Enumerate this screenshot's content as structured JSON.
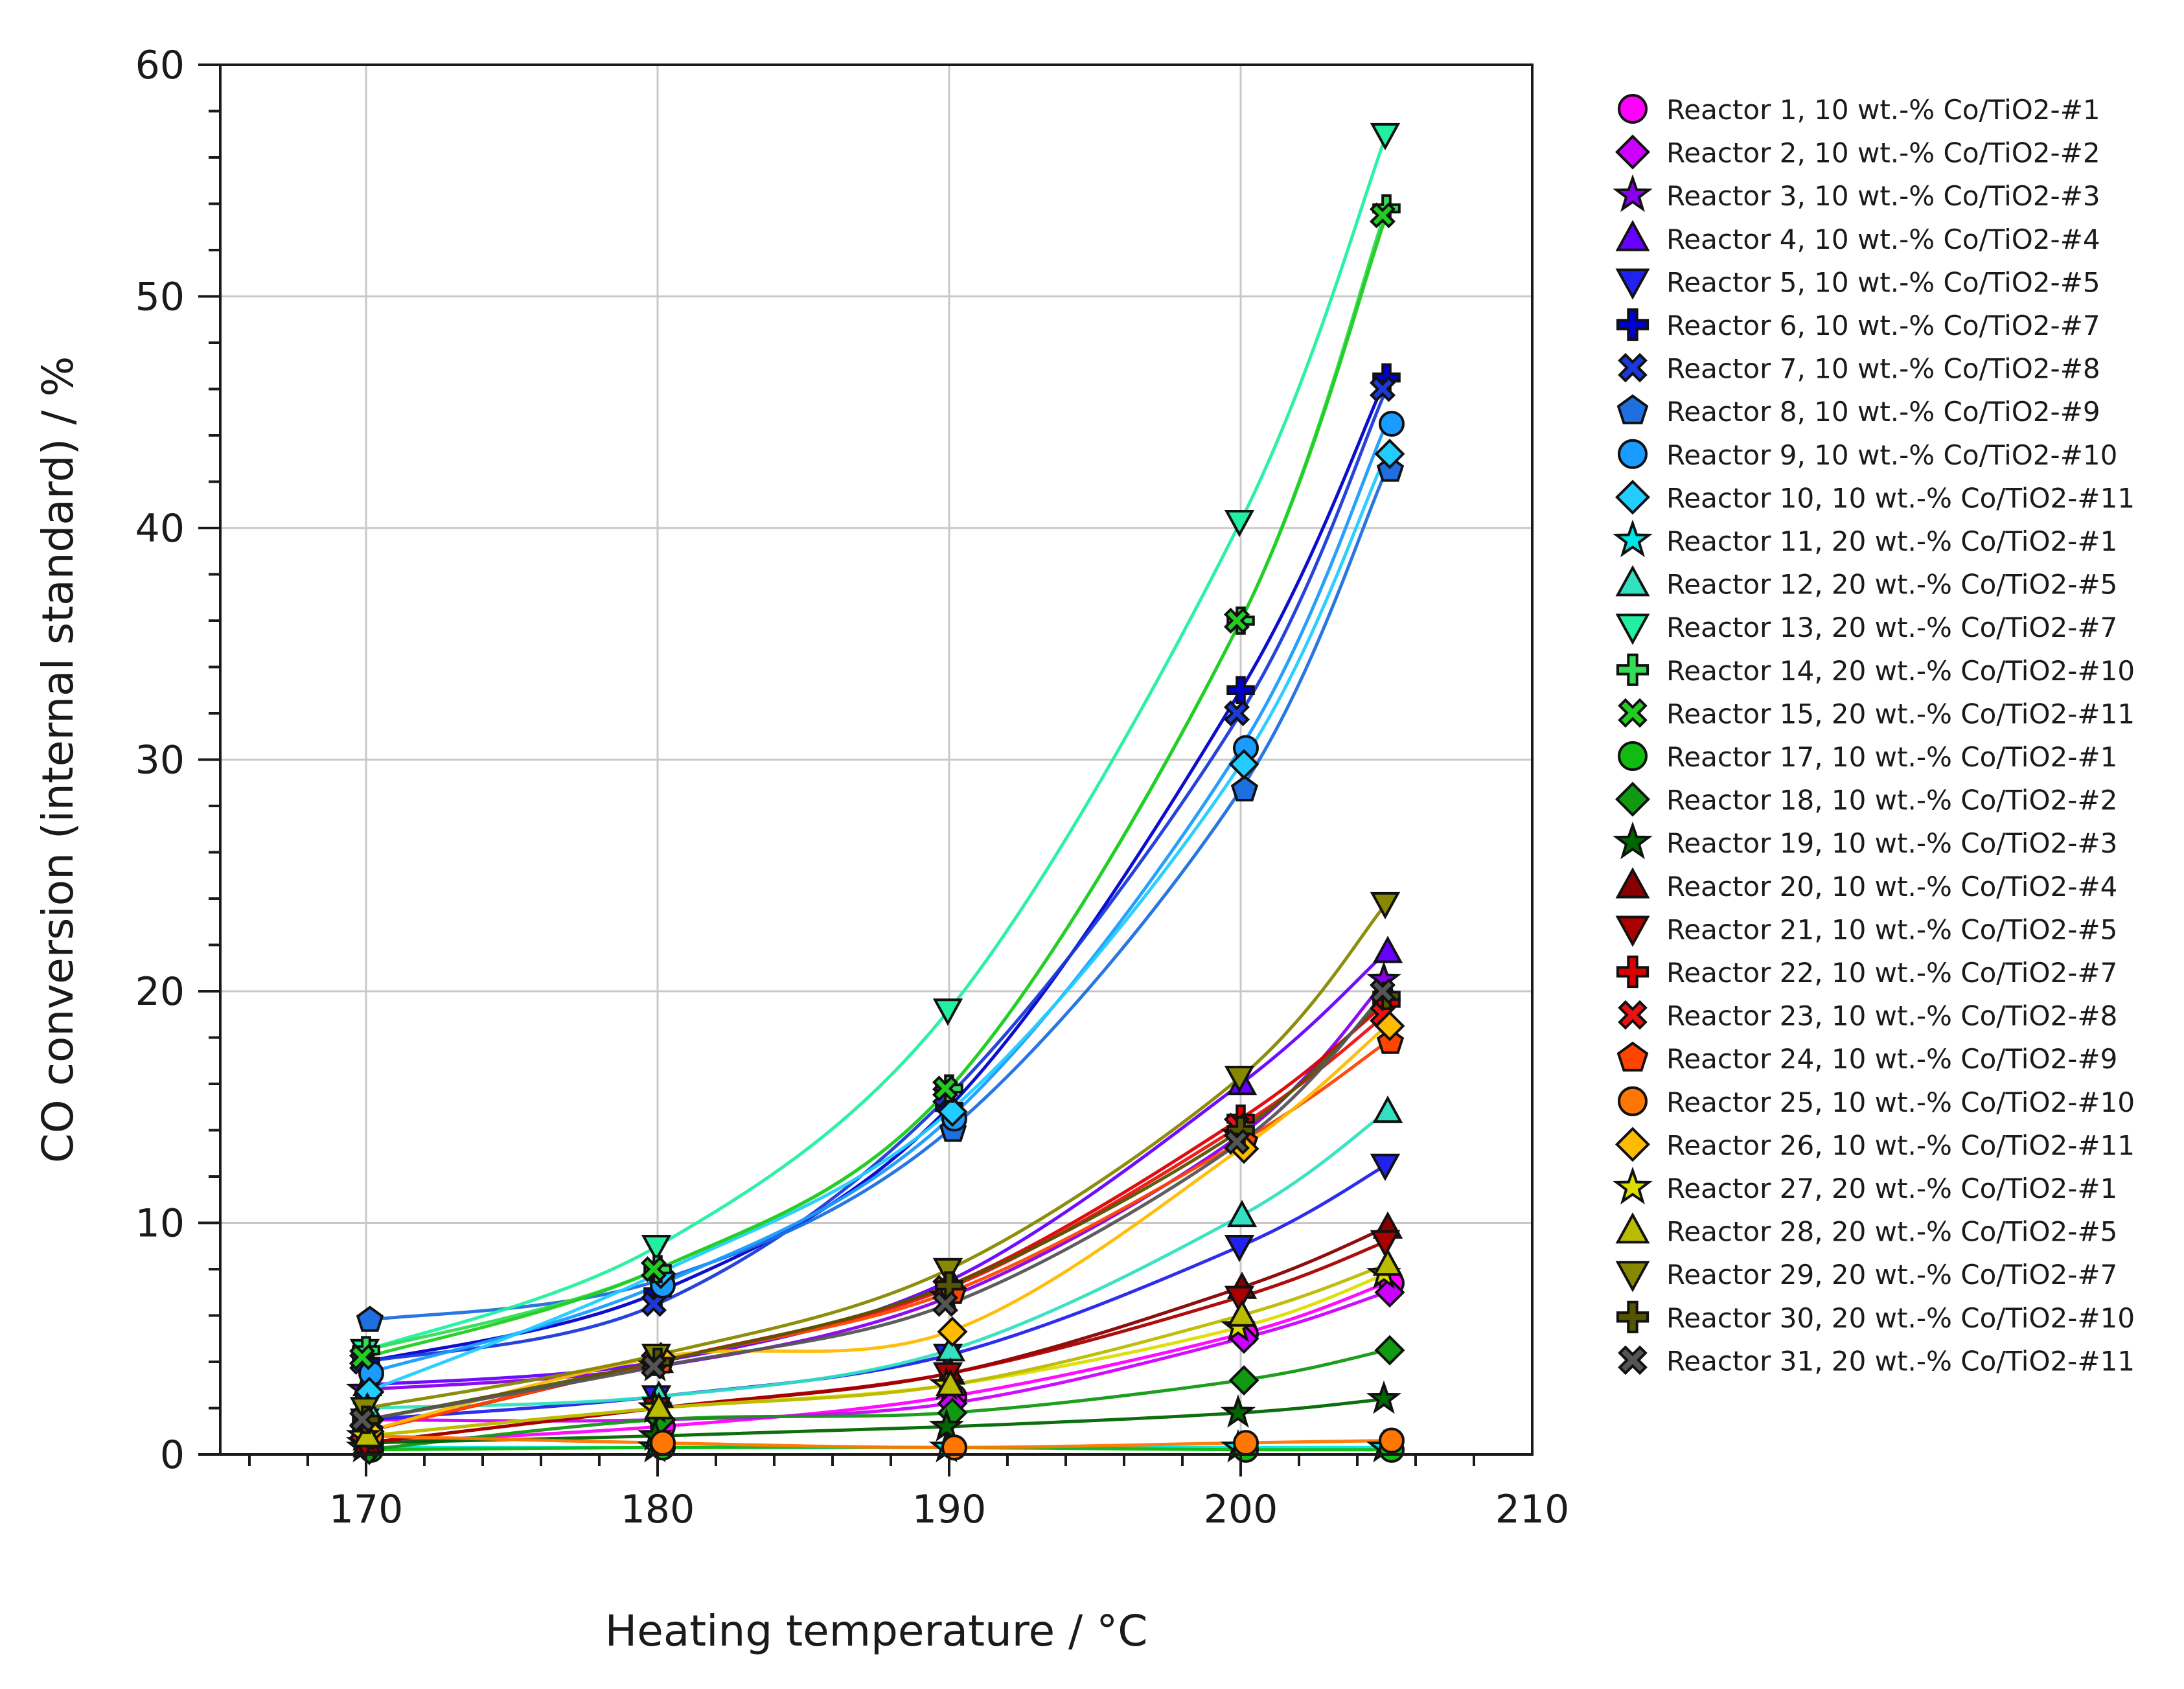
{
  "chart_data": {
    "type": "scatter",
    "title": "",
    "xlabel": "Heating temperature / °C",
    "ylabel": "CO conversion (internal standard) / %",
    "xlim": [
      165,
      210
    ],
    "ylim": [
      0,
      60
    ],
    "xticks": [
      170,
      180,
      190,
      200,
      210
    ],
    "yticks": [
      0,
      10,
      20,
      30,
      40,
      50,
      60
    ],
    "grid": true,
    "legend_position": "right",
    "x": [
      170,
      180,
      190,
      200,
      205
    ],
    "series": [
      {
        "name": "Reactor 1, 10 wt.-% Co/TiO2-#1",
        "marker": "circle",
        "color": "#ff00ff",
        "values": [
          0.5,
          1.2,
          2.5,
          5.2,
          7.4
        ]
      },
      {
        "name": "Reactor 2, 10 wt.-% Co/TiO2-#2",
        "marker": "diamond",
        "color": "#cc00ff",
        "values": [
          1.5,
          1.5,
          2.2,
          5.0,
          7.0
        ]
      },
      {
        "name": "Reactor 3, 10 wt.-% Co/TiO2-#3",
        "marker": "star",
        "color": "#8800ee",
        "values": [
          2.8,
          3.8,
          6.8,
          13.8,
          20.5
        ]
      },
      {
        "name": "Reactor 4, 10 wt.-% Co/TiO2-#4",
        "marker": "triangle-up",
        "color": "#6600ff",
        "values": [
          3.0,
          4.0,
          7.5,
          16.0,
          21.7
        ]
      },
      {
        "name": "Reactor 5, 10 wt.-% Co/TiO2-#5",
        "marker": "triangle-down",
        "color": "#2222ee",
        "values": [
          1.5,
          2.5,
          4.3,
          9.0,
          12.5
        ]
      },
      {
        "name": "Reactor 6, 10 wt.-% Co/TiO2-#7",
        "marker": "plus",
        "color": "#0000cc",
        "values": [
          4.0,
          7.0,
          15.0,
          33.0,
          46.5
        ]
      },
      {
        "name": "Reactor 7, 10 wt.-% Co/TiO2-#8",
        "marker": "x",
        "color": "#1a3ad9",
        "values": [
          4.0,
          6.5,
          15.5,
          32.0,
          46.0
        ]
      },
      {
        "name": "Reactor 8, 10 wt.-% Co/TiO2-#9",
        "marker": "pentagon",
        "color": "#1e6fe0",
        "values": [
          5.8,
          7.5,
          14.0,
          28.7,
          42.5
        ]
      },
      {
        "name": "Reactor 9, 10 wt.-% Co/TiO2-#10",
        "marker": "circle",
        "color": "#1a9bff",
        "values": [
          3.5,
          7.3,
          14.5,
          30.5,
          44.5
        ]
      },
      {
        "name": "Reactor 10, 10 wt.-% Co/TiO2-#11",
        "marker": "diamond",
        "color": "#22ccff",
        "values": [
          2.7,
          7.8,
          14.8,
          29.8,
          43.2
        ]
      },
      {
        "name": "Reactor 11, 20 wt.-% Co/TiO2-#1",
        "marker": "star",
        "color": "#00e5e5",
        "values": [
          0.3,
          0.3,
          0.3,
          0.3,
          0.3
        ]
      },
      {
        "name": "Reactor 12, 20 wt.-% Co/TiO2-#5",
        "marker": "triangle-up",
        "color": "#33e0c0",
        "values": [
          2.0,
          2.5,
          4.5,
          10.3,
          14.8
        ]
      },
      {
        "name": "Reactor 13, 20 wt.-% Co/TiO2-#7",
        "marker": "triangle-down",
        "color": "#22f0a0",
        "values": [
          4.5,
          9.0,
          19.2,
          40.3,
          57.0
        ]
      },
      {
        "name": "Reactor 14, 20 wt.-% Co/TiO2-#10",
        "marker": "plus",
        "color": "#33dd55",
        "values": [
          4.5,
          8.0,
          15.8,
          36.0,
          53.8
        ]
      },
      {
        "name": "Reactor 15, 20 wt.-% Co/TiO2-#11",
        "marker": "x",
        "color": "#22cc22",
        "values": [
          4.2,
          8.0,
          15.8,
          36.0,
          53.5
        ]
      },
      {
        "name": "Reactor 17, 10 wt.-% Co/TiO2-#1",
        "marker": "circle",
        "color": "#11bb11",
        "values": [
          0.2,
          0.3,
          0.3,
          0.2,
          0.2
        ]
      },
      {
        "name": "Reactor 18, 10 wt.-% Co/TiO2-#2",
        "marker": "diamond",
        "color": "#119911",
        "values": [
          0.2,
          1.5,
          1.8,
          3.2,
          4.5
        ]
      },
      {
        "name": "Reactor 19, 10 wt.-% Co/TiO2-#3",
        "marker": "star",
        "color": "#006600",
        "values": [
          0.5,
          0.8,
          1.2,
          1.8,
          2.4
        ]
      },
      {
        "name": "Reactor 20, 10 wt.-% Co/TiO2-#4",
        "marker": "triangle-up",
        "color": "#880000",
        "values": [
          0.5,
          2.0,
          3.5,
          7.2,
          9.8
        ]
      },
      {
        "name": "Reactor 21, 10 wt.-% Co/TiO2-#5",
        "marker": "triangle-down",
        "color": "#aa0000",
        "values": [
          0.5,
          2.0,
          3.5,
          6.8,
          9.2
        ]
      },
      {
        "name": "Reactor 22, 10 wt.-% Co/TiO2-#7",
        "marker": "plus",
        "color": "#dd0000",
        "values": [
          1.0,
          4.0,
          7.3,
          14.5,
          19.5
        ]
      },
      {
        "name": "Reactor 23, 10 wt.-% Co/TiO2-#8",
        "marker": "x",
        "color": "#ee1111",
        "values": [
          1.0,
          4.0,
          7.2,
          14.2,
          19.0
        ]
      },
      {
        "name": "Reactor 24, 10 wt.-% Co/TiO2-#9",
        "marker": "pentagon",
        "color": "#ff4400",
        "values": [
          1.0,
          4.0,
          7.0,
          13.5,
          17.8
        ]
      },
      {
        "name": "Reactor 25, 10 wt.-% Co/TiO2-#10",
        "marker": "circle",
        "color": "#ff7700",
        "values": [
          0.8,
          0.5,
          0.3,
          0.5,
          0.6
        ]
      },
      {
        "name": "Reactor 26, 10 wt.-% Co/TiO2-#11",
        "marker": "diamond",
        "color": "#ffbb00",
        "values": [
          1.0,
          4.2,
          5.3,
          13.2,
          18.5
        ]
      },
      {
        "name": "Reactor 27, 20 wt.-% Co/TiO2-#1",
        "marker": "star",
        "color": "#dddd00",
        "values": [
          0.8,
          2.0,
          3.0,
          5.5,
          7.8
        ]
      },
      {
        "name": "Reactor 28, 20 wt.-% Co/TiO2-#5",
        "marker": "triangle-up",
        "color": "#bbbb00",
        "values": [
          0.8,
          2.0,
          3.0,
          6.0,
          8.2
        ]
      },
      {
        "name": "Reactor 29, 20 wt.-% Co/TiO2-#7",
        "marker": "triangle-down",
        "color": "#888800",
        "values": [
          2.0,
          4.3,
          8.0,
          16.3,
          23.8
        ]
      },
      {
        "name": "Reactor 30, 20 wt.-% Co/TiO2-#10",
        "marker": "plus",
        "color": "#555500",
        "values": [
          1.5,
          4.0,
          7.3,
          14.0,
          19.8
        ]
      },
      {
        "name": "Reactor 31, 20 wt.-% Co/TiO2-#11",
        "marker": "x",
        "color": "#555555",
        "values": [
          1.5,
          3.8,
          6.5,
          13.5,
          20.0
        ]
      }
    ]
  }
}
